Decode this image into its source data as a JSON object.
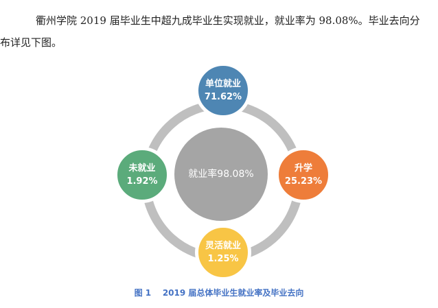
{
  "paragraph": "衢州学院 2019 届毕业生中超九成毕业生实现就业，就业率为 98.08%。毕业去向分布详见下图。",
  "chart_data": {
    "type": "diagram",
    "center": {
      "label": "就业率98.08%"
    },
    "nodes": [
      {
        "label": "单位就业",
        "value": "71.62%",
        "color": "#4e86b3"
      },
      {
        "label": "升学",
        "value": "25.23%",
        "color": "#ee7d3a"
      },
      {
        "label": "灵活就业",
        "value": "1.25%",
        "color": "#f8c545"
      },
      {
        "label": "未就业",
        "value": "1.92%",
        "color": "#5bab7b"
      }
    ],
    "center_color": "#a5a5a5",
    "ring_color": "#bfbfbf"
  },
  "caption": {
    "number": "图 1",
    "text": "2019 届总体毕业生就业率及毕业去向"
  }
}
